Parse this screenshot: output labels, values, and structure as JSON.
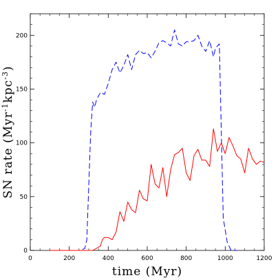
{
  "chart_data": {
    "type": "line",
    "title": "",
    "xlabel": "time (Myr)",
    "ylabel_parts": {
      "base": "SN rate (Myr",
      "sup1": "-1",
      "mid": "kpc",
      "sup2": "-3",
      "end": ")"
    },
    "xlim": [
      0,
      1200
    ],
    "ylim": [
      0,
      220
    ],
    "xticks": [
      0,
      200,
      400,
      600,
      800,
      1000,
      1200
    ],
    "yticks": [
      0,
      50,
      100,
      150,
      200
    ],
    "grid": false,
    "legend": "none",
    "series": [
      {
        "style": "dashed",
        "color": "#0000ff",
        "x": [
          100,
          260,
          280,
          290,
          300,
          310,
          320,
          330,
          340,
          360,
          380,
          400,
          420,
          440,
          460,
          480,
          500,
          520,
          540,
          560,
          580,
          600,
          620,
          640,
          660,
          680,
          700,
          720,
          740,
          760,
          780,
          800,
          820,
          840,
          860,
          880,
          900,
          920,
          940,
          950,
          970,
          990,
          1010,
          1030,
          1040,
          1060
        ],
        "y": [
          0,
          0,
          2,
          10,
          60,
          110,
          138,
          133,
          140,
          147,
          145,
          155,
          168,
          175,
          165,
          172,
          182,
          168,
          182,
          186,
          183,
          184,
          179,
          185,
          193,
          195,
          193,
          190,
          205,
          192,
          190,
          194,
          194,
          195,
          200,
          190,
          185,
          195,
          180,
          188,
          192,
          30,
          8,
          0,
          0,
          0
        ]
      },
      {
        "style": "solid",
        "color": "#ff0000",
        "x": [
          100,
          320,
          340,
          360,
          370,
          380,
          400,
          420,
          440,
          460,
          480,
          500,
          520,
          540,
          560,
          580,
          600,
          620,
          640,
          660,
          680,
          700,
          720,
          740,
          760,
          780,
          800,
          820,
          840,
          860,
          880,
          900,
          920,
          940,
          960,
          980,
          1000,
          1020,
          1040,
          1060,
          1080,
          1100,
          1120,
          1140,
          1160,
          1180,
          1200
        ],
        "y": [
          0,
          0,
          2,
          4,
          10,
          12,
          12,
          10,
          17,
          36,
          27,
          45,
          38,
          35,
          56,
          48,
          46,
          80,
          62,
          58,
          77,
          50,
          75,
          89,
          91,
          95,
          72,
          65,
          88,
          94,
          84,
          84,
          78,
          113,
          92,
          100,
          90,
          105,
          97,
          88,
          85,
          72,
          95,
          85,
          80,
          83,
          82
        ]
      }
    ]
  }
}
